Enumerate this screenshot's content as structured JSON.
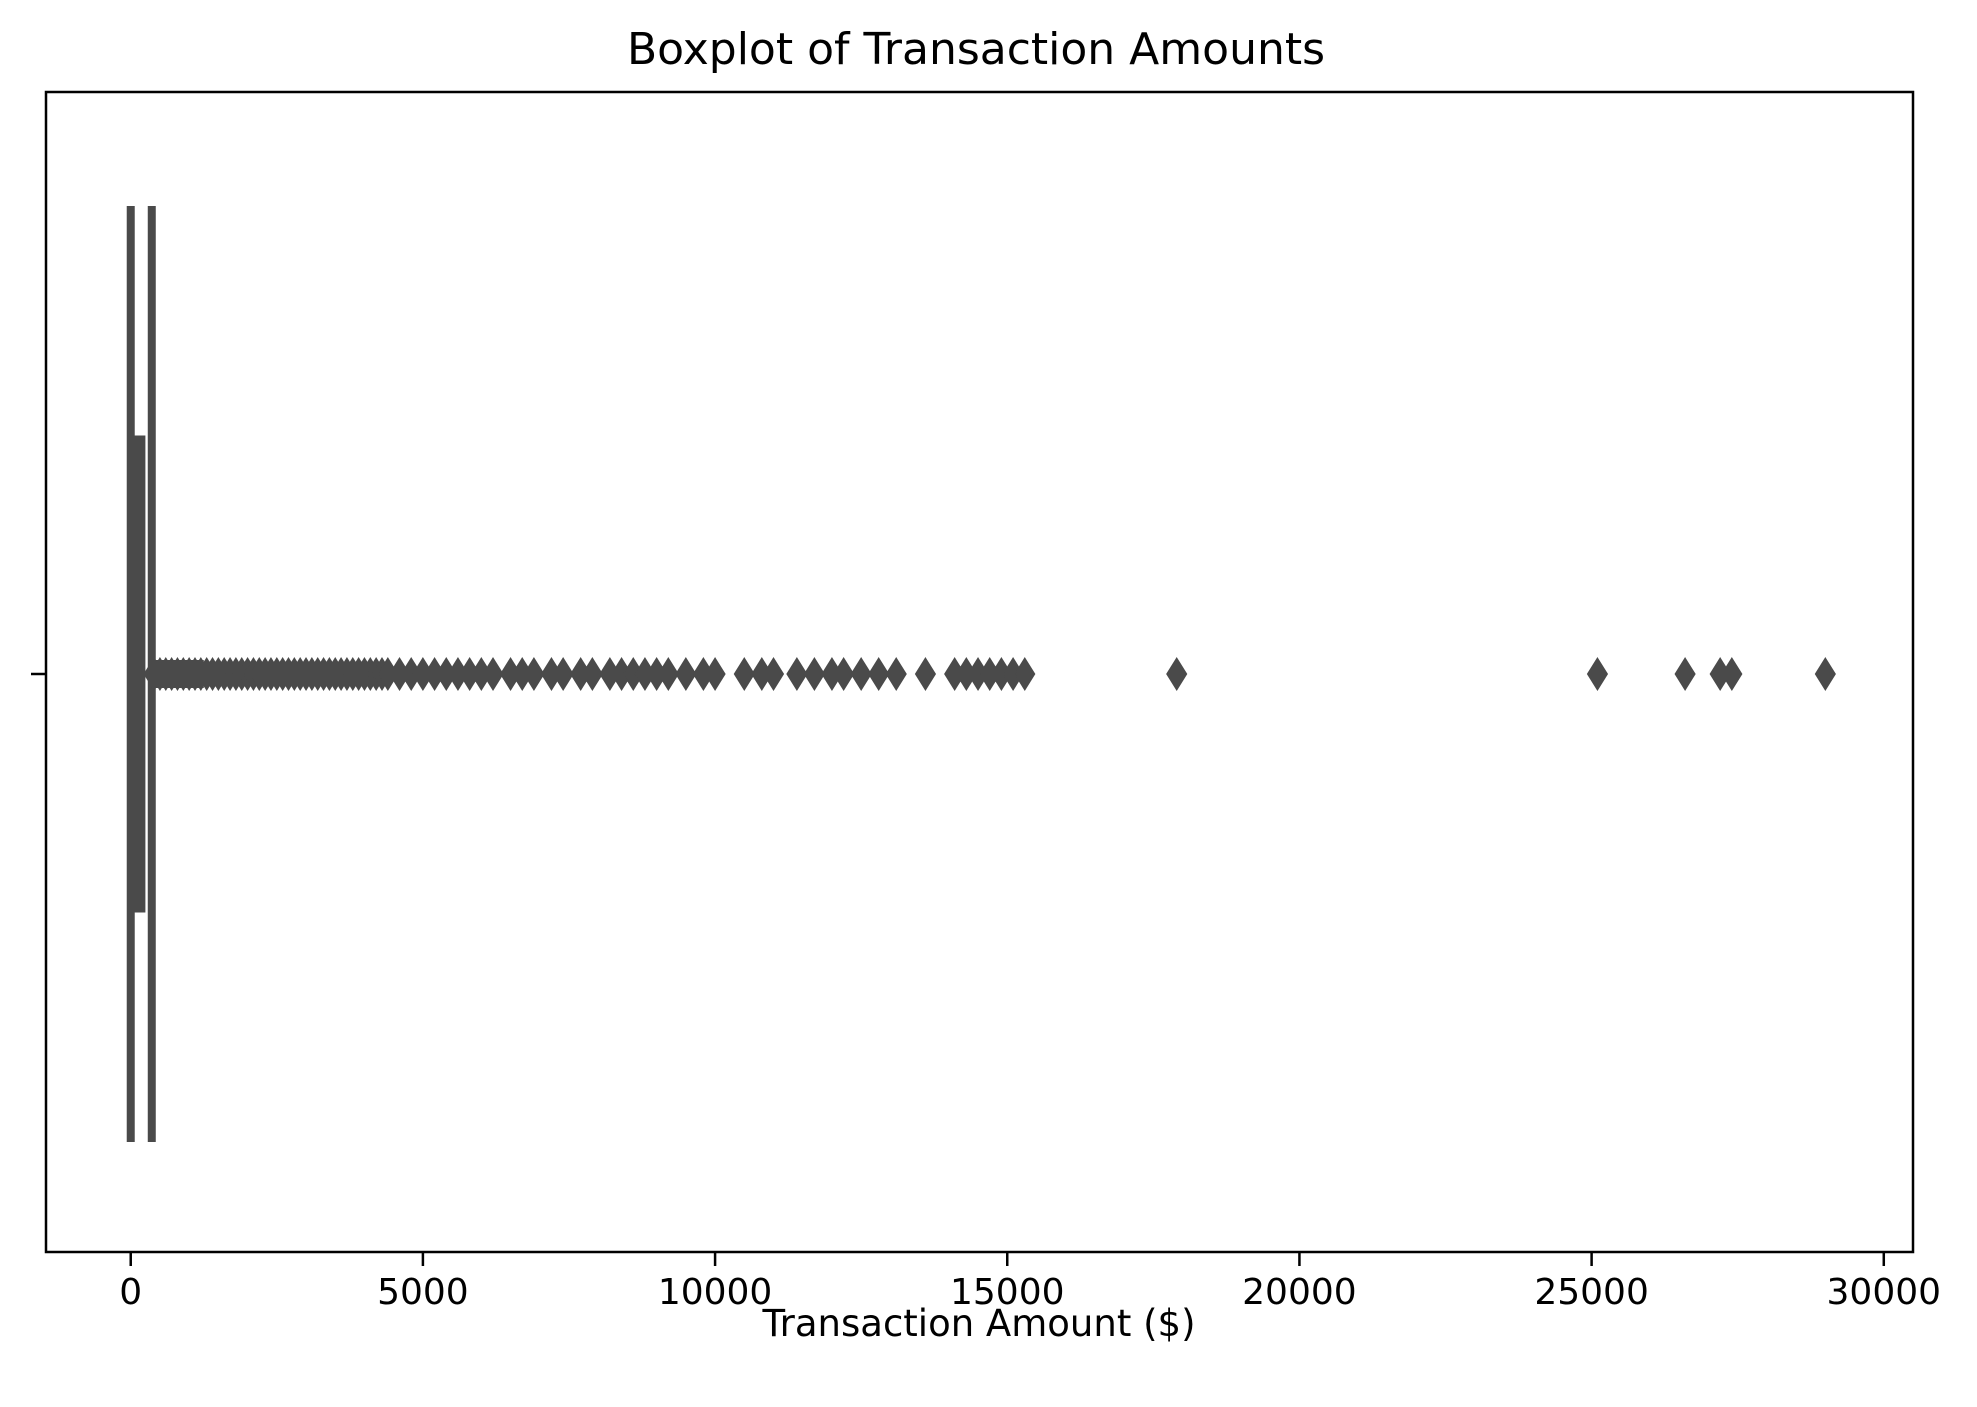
{
  "chart_data": {
    "type": "box",
    "orientation": "horizontal",
    "title": "Boxplot of Transaction Amounts",
    "xlabel": "Transaction Amount ($)",
    "ylabel": "",
    "xlim": [
      -1450,
      30500
    ],
    "xticks": [
      0,
      5000,
      10000,
      15000,
      20000,
      25000,
      30000
    ],
    "xtick_labels": [
      "0",
      "5000",
      "10000",
      "15000",
      "20000",
      "25000",
      "30000"
    ],
    "grid": false,
    "legend": "none",
    "box": {
      "whisker_low": 0,
      "q1": 20,
      "median": 70,
      "q3": 160,
      "whisker_high": 360
    },
    "outliers": [
      400,
      500,
      600,
      700,
      800,
      900,
      1000,
      1100,
      1200,
      1300,
      1400,
      1500,
      1600,
      1700,
      1800,
      1900,
      2000,
      2100,
      2200,
      2300,
      2400,
      2500,
      2600,
      2700,
      2800,
      2900,
      3000,
      3100,
      3200,
      3300,
      3400,
      3500,
      3600,
      3700,
      3800,
      3900,
      4000,
      4100,
      4200,
      4300,
      4400,
      4600,
      4800,
      5000,
      5200,
      5400,
      5600,
      5800,
      6000,
      6200,
      6500,
      6700,
      6900,
      7200,
      7400,
      7700,
      7900,
      8200,
      8400,
      8600,
      8800,
      9000,
      9200,
      9500,
      9800,
      10000,
      10500,
      10800,
      11000,
      11400,
      11700,
      12000,
      12200,
      12500,
      12800,
      13100,
      13600,
      14100,
      14300,
      14500,
      14700,
      14900,
      15100,
      15300,
      17900,
      25100,
      26600,
      27200,
      27400,
      29000
    ],
    "colors": {
      "box": "#4a4a4a",
      "axes": "#000000",
      "background": "#ffffff"
    }
  }
}
